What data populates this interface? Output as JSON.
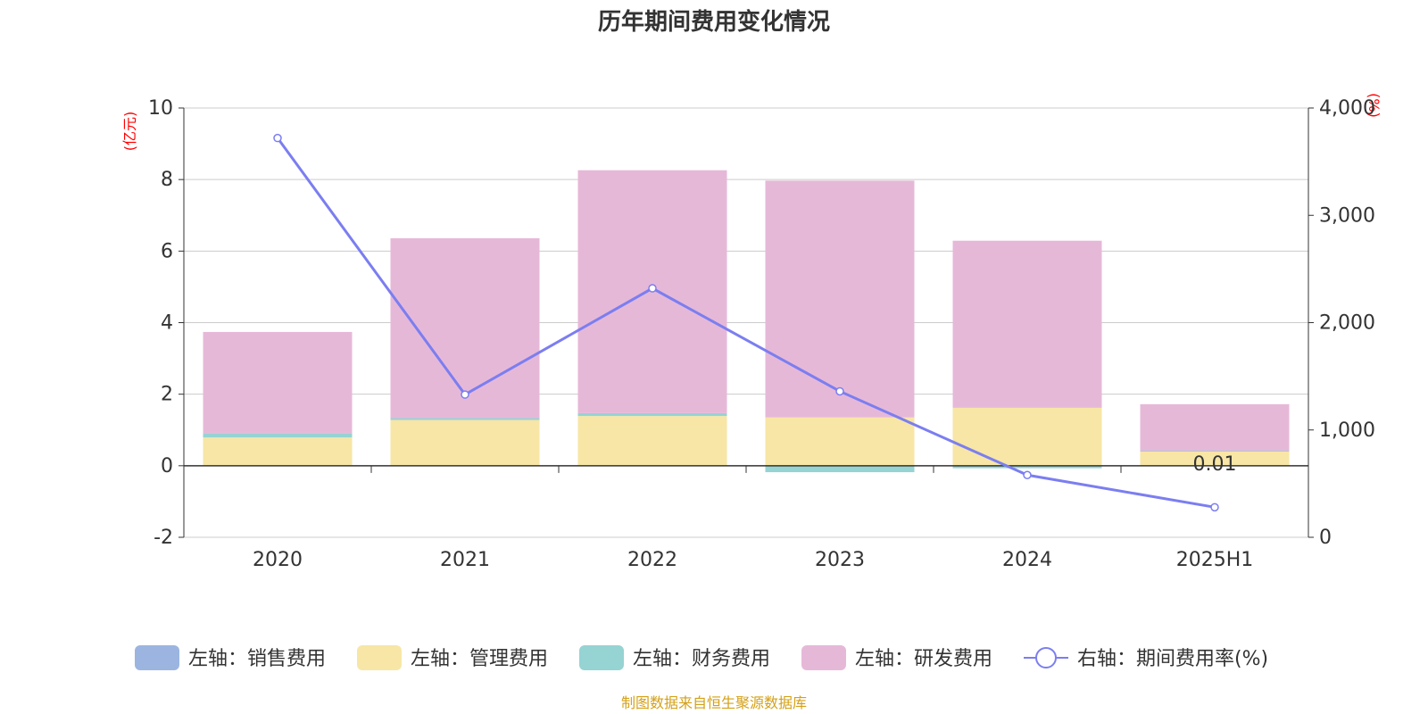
{
  "chart_data": {
    "type": "bar",
    "title": "历年期间费用变化情况",
    "categories": [
      "2020",
      "2021",
      "2022",
      "2023",
      "2024",
      "2025H1"
    ],
    "y_left": {
      "unit": "(亿元)",
      "range": [
        -2,
        10
      ],
      "ticks": [
        "-2",
        "0",
        "2",
        "4",
        "6",
        "8",
        "10"
      ]
    },
    "y_right": {
      "unit": "(%)",
      "range": [
        0,
        4000
      ],
      "ticks": [
        "0",
        "1,000",
        "2,000",
        "3,000",
        "4,000"
      ]
    },
    "grid": true,
    "stacked": true,
    "series": [
      {
        "name": "左轴：销售费用",
        "axis": "left",
        "kind": "bar",
        "color": "#9bb5e0",
        "values": [
          0,
          0,
          0,
          0,
          0,
          0
        ]
      },
      {
        "name": "左轴：管理费用",
        "axis": "left",
        "kind": "bar",
        "color": "#f7e6a6",
        "values": [
          0.79,
          1.28,
          1.39,
          1.35,
          1.62,
          0.41
        ]
      },
      {
        "name": "左轴：财务费用",
        "axis": "left",
        "kind": "bar",
        "color": "#96d3d3",
        "values": [
          0.12,
          0.05,
          0.08,
          -0.18,
          -0.07,
          0.01
        ]
      },
      {
        "name": "左轴：研发费用",
        "axis": "left",
        "kind": "bar",
        "color": "#e6b8d8",
        "values": [
          2.83,
          5.03,
          6.79,
          6.62,
          4.67,
          1.3
        ]
      },
      {
        "name": "右轴：期间费用率(%)",
        "axis": "right",
        "kind": "line",
        "color": "#7b7ef0",
        "values": [
          3720,
          1330,
          2320,
          1360,
          580,
          280
        ]
      }
    ],
    "visible_labels": [
      "0.01"
    ],
    "legend_position": "bottom"
  },
  "source_note": "制图数据来自恒生聚源数据库"
}
